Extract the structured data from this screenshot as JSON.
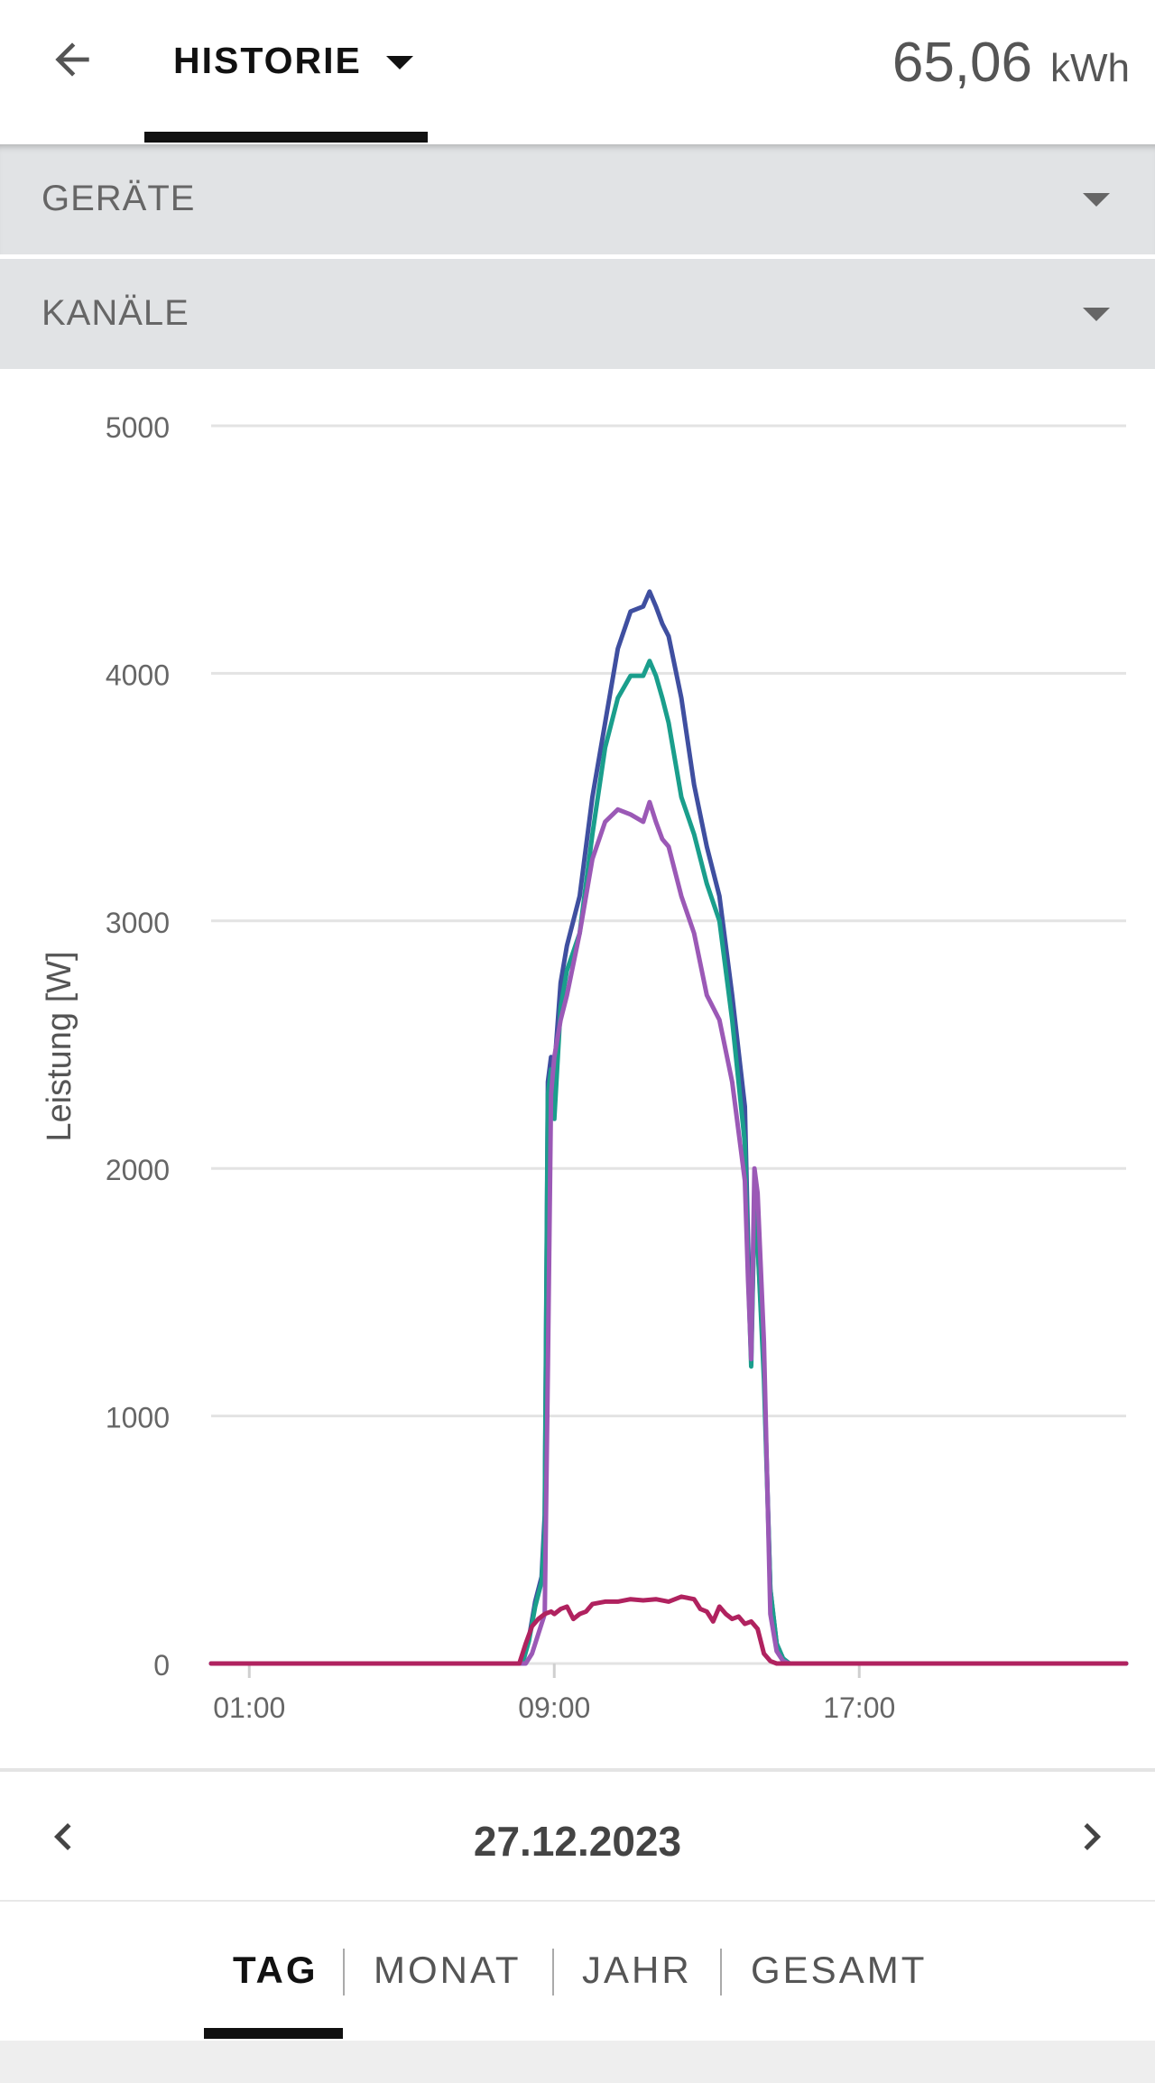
{
  "header": {
    "tab_label": "HISTORIE",
    "energy_value": "65,06",
    "energy_unit": "kWh"
  },
  "filters": {
    "devices_label": "GERÄTE",
    "channels_label": "KANÄLE"
  },
  "date_nav": {
    "date": "27.12.2023"
  },
  "period_tabs": [
    {
      "label": "TAG",
      "active": true
    },
    {
      "label": "MONAT",
      "active": false
    },
    {
      "label": "JAHR",
      "active": false
    },
    {
      "label": "GESAMT",
      "active": false
    }
  ],
  "chart_data": {
    "type": "line",
    "title": "",
    "xlabel": "",
    "ylabel": "Leistung [W]",
    "ylim": [
      0,
      5000
    ],
    "xlim": [
      "00:00",
      "24:00"
    ],
    "y_ticks": [
      "0",
      "1000",
      "2000",
      "3000",
      "4000",
      "5000"
    ],
    "x_ticks": [
      "01:00",
      "09:00",
      "17:00"
    ],
    "grid": true,
    "series": [
      {
        "color": "#3f4fa0",
        "points": [
          [
            "00:00",
            0
          ],
          [
            "08:10",
            0
          ],
          [
            "08:20",
            100
          ],
          [
            "08:30",
            250
          ],
          [
            "08:40",
            350
          ],
          [
            "08:45",
            600
          ],
          [
            "08:50",
            2350
          ],
          [
            "08:55",
            2450
          ],
          [
            "09:00",
            2400
          ],
          [
            "09:10",
            2750
          ],
          [
            "09:20",
            2900
          ],
          [
            "09:40",
            3100
          ],
          [
            "10:00",
            3500
          ],
          [
            "10:20",
            3800
          ],
          [
            "10:40",
            4100
          ],
          [
            "11:00",
            4250
          ],
          [
            "11:20",
            4270
          ],
          [
            "11:30",
            4330
          ],
          [
            "11:40",
            4270
          ],
          [
            "11:50",
            4200
          ],
          [
            "12:00",
            4150
          ],
          [
            "12:20",
            3900
          ],
          [
            "12:40",
            3550
          ],
          [
            "13:00",
            3300
          ],
          [
            "13:20",
            3100
          ],
          [
            "13:40",
            2700
          ],
          [
            "14:00",
            2250
          ],
          [
            "14:05",
            1700
          ],
          [
            "14:10",
            1250
          ],
          [
            "14:15",
            1850
          ],
          [
            "14:20",
            1700
          ],
          [
            "14:30",
            1200
          ],
          [
            "14:40",
            300
          ],
          [
            "14:50",
            80
          ],
          [
            "15:00",
            20
          ],
          [
            "15:10",
            0
          ],
          [
            "24:00",
            0
          ]
        ]
      },
      {
        "color": "#1a9e8c",
        "points": [
          [
            "00:00",
            0
          ],
          [
            "08:10",
            0
          ],
          [
            "08:20",
            90
          ],
          [
            "08:30",
            230
          ],
          [
            "08:40",
            330
          ],
          [
            "08:45",
            550
          ],
          [
            "08:50",
            2300
          ],
          [
            "08:55",
            2400
          ],
          [
            "09:00",
            2200
          ],
          [
            "09:10",
            2650
          ],
          [
            "09:20",
            2800
          ],
          [
            "09:40",
            2950
          ],
          [
            "10:00",
            3350
          ],
          [
            "10:20",
            3700
          ],
          [
            "10:40",
            3900
          ],
          [
            "11:00",
            3990
          ],
          [
            "11:20",
            3990
          ],
          [
            "11:30",
            4050
          ],
          [
            "11:40",
            3990
          ],
          [
            "11:50",
            3900
          ],
          [
            "12:00",
            3800
          ],
          [
            "12:20",
            3500
          ],
          [
            "12:40",
            3350
          ],
          [
            "13:00",
            3150
          ],
          [
            "13:20",
            3000
          ],
          [
            "13:40",
            2600
          ],
          [
            "14:00",
            2100
          ],
          [
            "14:05",
            1600
          ],
          [
            "14:10",
            1200
          ],
          [
            "14:15",
            1850
          ],
          [
            "14:20",
            1700
          ],
          [
            "14:30",
            1150
          ],
          [
            "14:40",
            300
          ],
          [
            "14:50",
            80
          ],
          [
            "15:00",
            20
          ],
          [
            "15:10",
            0
          ],
          [
            "24:00",
            0
          ]
        ]
      },
      {
        "color": "#9b59b6",
        "points": [
          [
            "00:00",
            0
          ],
          [
            "08:15",
            0
          ],
          [
            "08:25",
            40
          ],
          [
            "08:35",
            120
          ],
          [
            "08:45",
            200
          ],
          [
            "08:50",
            1200
          ],
          [
            "08:55",
            2300
          ],
          [
            "09:00",
            2450
          ],
          [
            "09:10",
            2600
          ],
          [
            "09:20",
            2700
          ],
          [
            "09:40",
            2950
          ],
          [
            "10:00",
            3250
          ],
          [
            "10:20",
            3400
          ],
          [
            "10:40",
            3450
          ],
          [
            "11:00",
            3430
          ],
          [
            "11:20",
            3400
          ],
          [
            "11:30",
            3480
          ],
          [
            "11:40",
            3400
          ],
          [
            "11:50",
            3330
          ],
          [
            "12:00",
            3300
          ],
          [
            "12:20",
            3100
          ],
          [
            "12:40",
            2950
          ],
          [
            "13:00",
            2700
          ],
          [
            "13:20",
            2600
          ],
          [
            "13:40",
            2350
          ],
          [
            "14:00",
            1950
          ],
          [
            "14:05",
            1550
          ],
          [
            "14:10",
            1230
          ],
          [
            "14:15",
            2000
          ],
          [
            "14:20",
            1900
          ],
          [
            "14:30",
            1300
          ],
          [
            "14:40",
            200
          ],
          [
            "14:50",
            50
          ],
          [
            "15:00",
            10
          ],
          [
            "15:10",
            0
          ],
          [
            "24:00",
            0
          ]
        ]
      },
      {
        "color": "#b0225f",
        "points": [
          [
            "00:00",
            0
          ],
          [
            "08:05",
            0
          ],
          [
            "08:15",
            80
          ],
          [
            "08:25",
            150
          ],
          [
            "08:35",
            180
          ],
          [
            "08:45",
            200
          ],
          [
            "08:55",
            210
          ],
          [
            "09:00",
            200
          ],
          [
            "09:10",
            220
          ],
          [
            "09:20",
            230
          ],
          [
            "09:30",
            180
          ],
          [
            "09:40",
            200
          ],
          [
            "09:50",
            210
          ],
          [
            "10:00",
            240
          ],
          [
            "10:20",
            250
          ],
          [
            "10:40",
            250
          ],
          [
            "11:00",
            260
          ],
          [
            "11:20",
            255
          ],
          [
            "11:40",
            260
          ],
          [
            "12:00",
            250
          ],
          [
            "12:20",
            270
          ],
          [
            "12:40",
            260
          ],
          [
            "12:50",
            220
          ],
          [
            "13:00",
            210
          ],
          [
            "13:10",
            170
          ],
          [
            "13:20",
            230
          ],
          [
            "13:30",
            200
          ],
          [
            "13:40",
            180
          ],
          [
            "13:50",
            190
          ],
          [
            "14:00",
            160
          ],
          [
            "14:10",
            170
          ],
          [
            "14:20",
            140
          ],
          [
            "14:30",
            40
          ],
          [
            "14:40",
            10
          ],
          [
            "14:50",
            0
          ],
          [
            "24:00",
            0
          ]
        ]
      }
    ]
  }
}
